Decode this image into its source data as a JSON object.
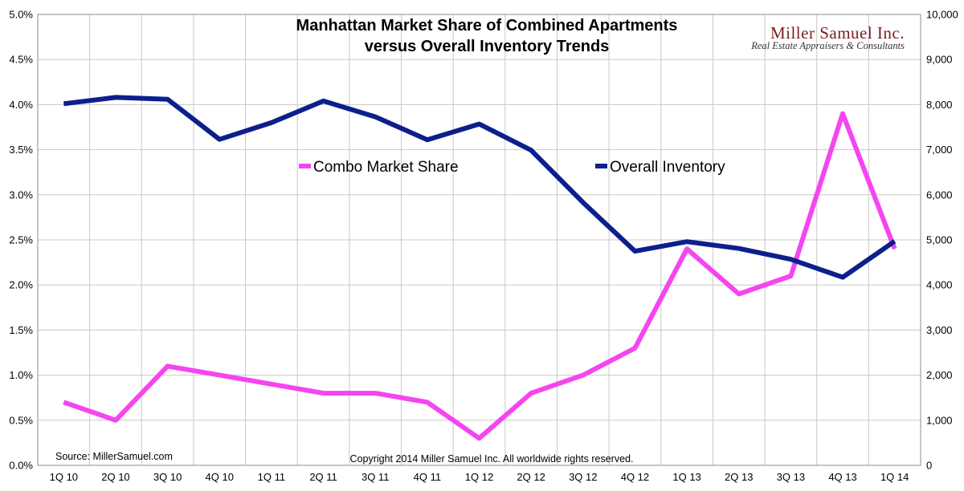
{
  "brand": {
    "name": "Miller Samuel Inc.",
    "tagline": "Real Estate Appraisers & Consultants",
    "color": "#7a1e22",
    "tagline_color": "#333333"
  },
  "source_note": "Source: MillerSamuel.com",
  "copyright_note": "Copyright 2014 Miller Samuel Inc.  All worldwide rights reserved.",
  "colors": {
    "combo": "#f545f0",
    "inventory": "#0c1f8c",
    "grid": "#c8c8c8"
  },
  "chart_data": {
    "type": "line",
    "title": [
      "Manhattan Market Share of Combined Apartments",
      "versus Overall Inventory Trends"
    ],
    "categories": [
      "1Q 10",
      "2Q 10",
      "3Q 10",
      "4Q 10",
      "1Q 11",
      "2Q 11",
      "3Q 11",
      "4Q 11",
      "1Q 12",
      "2Q 12",
      "3Q 12",
      "4Q 12",
      "1Q 13",
      "2Q 13",
      "3Q 13",
      "4Q 13",
      "1Q 14"
    ],
    "left_axis": {
      "ylim": [
        0,
        5
      ],
      "ticks": [
        0,
        0.5,
        1,
        1.5,
        2,
        2.5,
        3,
        3.5,
        4,
        4.5,
        5
      ],
      "tick_labels": [
        "0.0%",
        "0.5%",
        "1.0%",
        "1.5%",
        "2.0%",
        "2.5%",
        "3.0%",
        "3.5%",
        "4.0%",
        "4.5%",
        "5.0%"
      ]
    },
    "right_axis": {
      "ylim": [
        0,
        10000
      ],
      "ticks": [
        0,
        1000,
        2000,
        3000,
        4000,
        5000,
        6000,
        7000,
        8000,
        9000,
        10000
      ],
      "tick_labels": [
        "0",
        "1,000",
        "2,000",
        "3,000",
        "4,000",
        "5,000",
        "6,000",
        "7,000",
        "8,000",
        "9,000",
        "10,000"
      ]
    },
    "grid": true,
    "legend_position": "center-upper",
    "series": [
      {
        "name": "Combo Market Share",
        "axis": "left",
        "values": [
          0.7,
          0.5,
          1.1,
          1.0,
          0.9,
          0.8,
          0.8,
          0.7,
          0.3,
          0.8,
          1.0,
          1.3,
          2.4,
          1.9,
          2.1,
          3.9,
          2.4
        ]
      },
      {
        "name": "Overall Inventory",
        "axis": "right",
        "values": [
          8020,
          8160,
          8120,
          7230,
          7600,
          8080,
          7730,
          7220,
          7570,
          6990,
          5830,
          4750,
          4960,
          4810,
          4570,
          4170,
          4970
        ]
      }
    ]
  }
}
